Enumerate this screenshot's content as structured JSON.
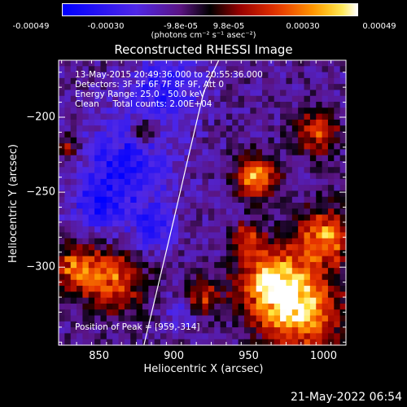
{
  "colorbar": {
    "tick_labels": [
      "-0.00049",
      "-0.00030",
      "-9.8e-05",
      "9.8e-05",
      "0.00030",
      "0.00049"
    ],
    "unit_label": "(photons cm⁻² s⁻¹ asec⁻²)",
    "range": [
      -0.00049,
      0.00049
    ]
  },
  "chart_data": {
    "type": "heatmap",
    "title": "Reconstructed RHESSI Image",
    "xlabel": "Heliocentric X (arcsec)",
    "ylabel": "Heliocentric Y (arcsec)",
    "xlim": [
      823,
      1015
    ],
    "ylim": [
      -352,
      -162
    ],
    "x_ticks": [
      850,
      900,
      950,
      1000
    ],
    "x_tick_labels": [
      "850",
      "900",
      "950",
      "1000"
    ],
    "y_ticks": [
      -200,
      -250,
      -300
    ],
    "y_tick_labels": [
      "−200",
      "−250",
      "−300"
    ],
    "annotations": [
      "13-May-2015 20:49:36.000 to 20:55:36.000",
      "Detectors: 3F 5F 6F 7F 8F 9F, Att 0",
      "Energy Range: 25.0 - 50.0 keV",
      "Clean     Total counts: 2.00E+04",
      "Position of Peak = [959,-314]"
    ],
    "peak": {
      "x": 959,
      "y": -314
    },
    "limb_curve": {
      "x": [
        880,
        890,
        900,
        910,
        920,
        930
      ],
      "y": [
        -352,
        -310,
        -268,
        -225,
        -183,
        -162
      ]
    },
    "bright_regions": [
      {
        "x": 955,
        "y": -240,
        "r": 14,
        "v": 0.9
      },
      {
        "x": 965,
        "y": -310,
        "r": 22,
        "v": 1.0
      },
      {
        "x": 985,
        "y": -330,
        "r": 26,
        "v": 1.0
      },
      {
        "x": 1000,
        "y": -280,
        "r": 20,
        "v": 0.85
      },
      {
        "x": 995,
        "y": -210,
        "r": 14,
        "v": 0.7
      },
      {
        "x": 950,
        "y": -280,
        "r": 10,
        "v": 0.6
      },
      {
        "x": 860,
        "y": -310,
        "r": 20,
        "v": 0.75
      },
      {
        "x": 835,
        "y": -300,
        "r": 16,
        "v": 0.7
      },
      {
        "x": 920,
        "y": -320,
        "r": 12,
        "v": 0.55
      },
      {
        "x": 880,
        "y": -210,
        "r": 10,
        "v": 0.5
      },
      {
        "x": 830,
        "y": -220,
        "r": 8,
        "v": 0.45
      }
    ],
    "dark_regions": [
      {
        "x": 870,
        "y": -230,
        "r": 30,
        "v": -0.55
      },
      {
        "x": 895,
        "y": -180,
        "r": 22,
        "v": -0.5
      },
      {
        "x": 850,
        "y": -260,
        "r": 18,
        "v": -0.45
      },
      {
        "x": 905,
        "y": -330,
        "r": 10,
        "v": -0.35
      },
      {
        "x": 885,
        "y": -275,
        "r": 14,
        "v": -0.45
      }
    ]
  },
  "footer": {
    "date": "21-May-2022 06:54"
  }
}
